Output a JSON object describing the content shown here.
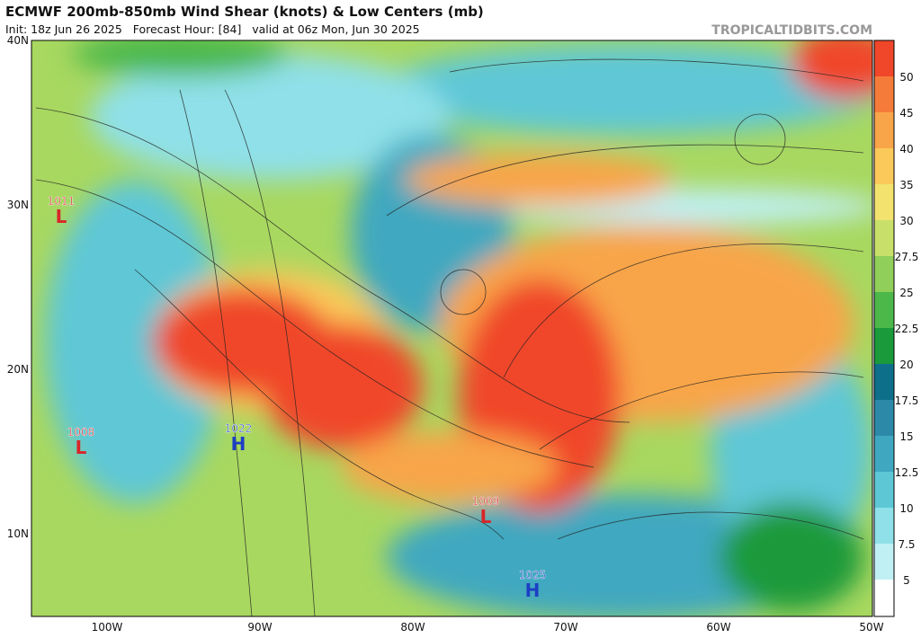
{
  "header": {
    "title": "ECMWF 200mb-850mb Wind Shear (knots) & Low Centers (mb)",
    "subtitle": "Init: 18z Jun 26 2025   Forecast Hour: [84]   valid at 06z Mon, Jun 30 2025",
    "watermark": "TROPICALTIDBITS.COM"
  },
  "lat_labels": [
    "40N",
    "30N",
    "20N",
    "10N"
  ],
  "lon_labels": [
    "100W",
    "90W",
    "80W",
    "70W",
    "60W",
    "50W"
  ],
  "colorbar": {
    "labels": [
      "50",
      "45",
      "40",
      "35",
      "30",
      "27.5",
      "25",
      "22.5",
      "20",
      "17.5",
      "15",
      "12.5",
      "10",
      "7.5",
      "5"
    ]
  },
  "centers": [
    {
      "pressure": "1011",
      "letter": "L"
    },
    {
      "pressure": "1008",
      "letter": "L"
    },
    {
      "pressure": "1022",
      "letter": "H"
    },
    {
      "pressure": "1009",
      "letter": "L"
    },
    {
      "pressure": "1025",
      "letter": "H"
    }
  ]
}
